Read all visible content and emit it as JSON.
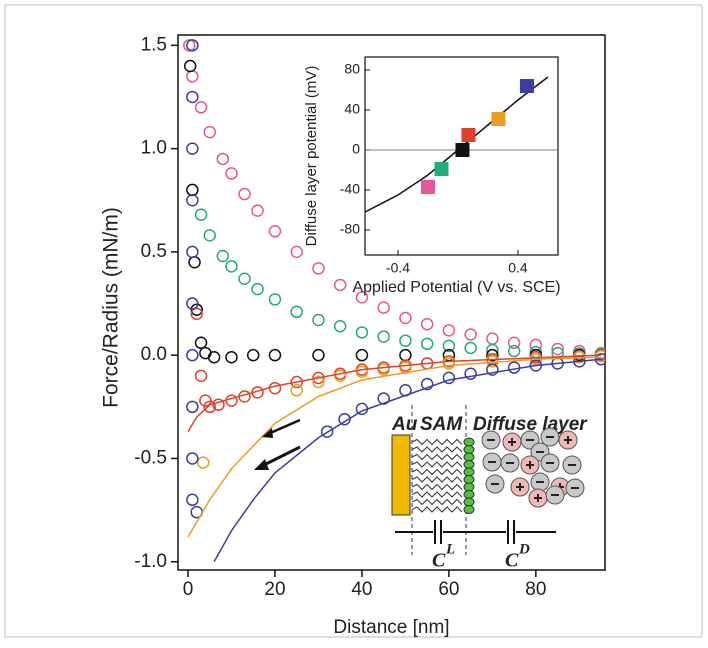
{
  "chart_data": [
    {
      "type": "scatter",
      "x_label": "Distance [nm]",
      "y_label": "Force/Radius (mN/m)",
      "xlim": [
        -2.3,
        95.9
      ],
      "ylim": [
        -1.04,
        1.55
      ],
      "xticks": [
        0,
        20,
        40,
        60,
        80
      ],
      "yticks": [
        1.5,
        {
          "value": 1,
          "label": "1.0"
        },
        0.5,
        {
          "value": 0,
          "label": "0.0"
        },
        -0.5,
        {
          "value": -1,
          "label": "-1.0"
        }
      ],
      "series": [
        {
          "color": "#e8559c",
          "mode": "markers",
          "x": [
            0.3,
            1,
            3,
            5,
            8,
            10,
            13,
            16,
            20,
            25,
            30,
            35,
            40,
            45,
            50,
            55,
            60,
            65,
            70,
            75,
            80,
            85,
            90,
            95
          ],
          "values": [
            1.5,
            1.35,
            1.2,
            1.08,
            0.95,
            0.88,
            0.78,
            0.7,
            0.6,
            0.5,
            0.42,
            0.34,
            0.28,
            0.23,
            0.18,
            0.15,
            0.12,
            0.1,
            0.08,
            0.06,
            0.05,
            0.03,
            0.02,
            0.01
          ]
        },
        {
          "color": "#1fae7c",
          "mode": "markers",
          "x": [
            3,
            5,
            8,
            10,
            13,
            16,
            20,
            25,
            30,
            35,
            40,
            45,
            50,
            55,
            60,
            65,
            70,
            75,
            80,
            85,
            90,
            95
          ],
          "values": [
            0.68,
            0.58,
            0.48,
            0.43,
            0.37,
            0.32,
            0.27,
            0.21,
            0.17,
            0.14,
            0.11,
            0.09,
            0.07,
            0.055,
            0.045,
            0.035,
            0.025,
            0.02,
            0.015,
            0.01,
            0.008,
            0.005
          ]
        },
        {
          "color": "#111111",
          "mode": "markers",
          "x": [
            0.5,
            1,
            1.5,
            2,
            3,
            4,
            6,
            10,
            15,
            20,
            30,
            40,
            50,
            60,
            70,
            80,
            90,
            95
          ],
          "values": [
            1.4,
            0.8,
            0.45,
            0.22,
            0.06,
            0.01,
            -0.01,
            -0.01,
            0,
            0,
            0,
            0,
            0,
            0,
            0,
            0,
            0,
            0
          ]
        },
        {
          "color": "#e0402f",
          "mode": "markers",
          "x": [
            2,
            3,
            4,
            5,
            7,
            10,
            13,
            16,
            20,
            25,
            30,
            35,
            40,
            45,
            50,
            55,
            60,
            70,
            80,
            90,
            95
          ],
          "values": [
            0.2,
            -0.1,
            -0.22,
            -0.25,
            -0.24,
            -0.22,
            -0.2,
            -0.18,
            -0.16,
            -0.13,
            -0.11,
            -0.09,
            -0.07,
            -0.06,
            -0.05,
            -0.04,
            -0.03,
            -0.02,
            -0.01,
            -0.005,
            0
          ]
        },
        {
          "color": "#e8a020",
          "mode": "markers",
          "x": [
            3.5,
            25,
            30,
            35,
            40,
            45,
            50,
            60,
            70,
            80,
            90,
            95
          ],
          "values": [
            -0.52,
            -0.17,
            -0.13,
            -0.1,
            -0.08,
            -0.07,
            -0.06,
            -0.04,
            -0.03,
            -0.02,
            -0.01,
            -0.005
          ]
        },
        {
          "color": "#3b3fa0",
          "mode": "markers",
          "x": [
            1,
            1,
            1,
            1,
            1,
            1,
            1,
            1,
            1,
            1,
            2,
            32,
            36,
            40,
            45,
            50,
            55,
            60,
            65,
            70,
            75,
            80,
            85,
            90,
            95
          ],
          "values": [
            1.5,
            1.25,
            1.0,
            0.75,
            0.5,
            0.25,
            0,
            -0.25,
            -0.5,
            -0.7,
            -0.76,
            -0.37,
            -0.31,
            -0.26,
            -0.21,
            -0.17,
            -0.14,
            -0.11,
            -0.09,
            -0.07,
            -0.06,
            -0.05,
            -0.04,
            -0.03,
            -0.02
          ]
        },
        {
          "color": "#e0402f",
          "mode": "line",
          "x": [
            0,
            2,
            5,
            10,
            20,
            40,
            60,
            95
          ],
          "values": [
            -0.37,
            -0.3,
            -0.24,
            -0.21,
            -0.15,
            -0.07,
            -0.03,
            0
          ]
        },
        {
          "color": "#e8a020",
          "mode": "line",
          "x": [
            0,
            5,
            10,
            20,
            30,
            40,
            60,
            80,
            95
          ],
          "values": [
            -0.88,
            -0.7,
            -0.55,
            -0.33,
            -0.2,
            -0.12,
            -0.05,
            -0.02,
            -0.01
          ]
        },
        {
          "color": "#3b3fa0",
          "mode": "line",
          "x": [
            6,
            10,
            15,
            20,
            30,
            40,
            60,
            80,
            95
          ],
          "values": [
            -1.0,
            -0.85,
            -0.7,
            -0.57,
            -0.4,
            -0.27,
            -0.12,
            -0.05,
            -0.02
          ]
        }
      ],
      "annotations": [
        "Au",
        "SAM",
        "Diffuse layer"
      ],
      "capacitors": [
        {
          "symbol": "C",
          "sup": "L"
        },
        {
          "symbol": "C",
          "sup": "D"
        }
      ]
    },
    {
      "type": "scatter",
      "x_label": "Applied Potential (V vs. SCE)",
      "y_label": "Diffuse layer potential (mV)",
      "xlim": [
        -0.62,
        0.667
      ],
      "ylim": [
        -105,
        93
      ],
      "xticks": [
        -0.4,
        0.4
      ],
      "yticks": [
        80,
        40,
        0,
        -40,
        -80
      ],
      "points": {
        "x": [
          -0.2,
          -0.11,
          0.03,
          0.07,
          0.27,
          0.46
        ],
        "values": [
          -37,
          -19,
          0,
          15,
          31,
          64
        ],
        "colors": [
          "#e8559c",
          "#1fae7c",
          "#111111",
          "#e0402f",
          "#e8a020",
          "#3b3fa0"
        ]
      },
      "fit": {
        "x": [
          -0.62,
          -0.4,
          -0.2,
          0,
          0.2,
          0.4,
          0.6
        ],
        "values": [
          -62,
          -45,
          -25,
          0,
          25,
          50,
          73
        ]
      }
    }
  ]
}
